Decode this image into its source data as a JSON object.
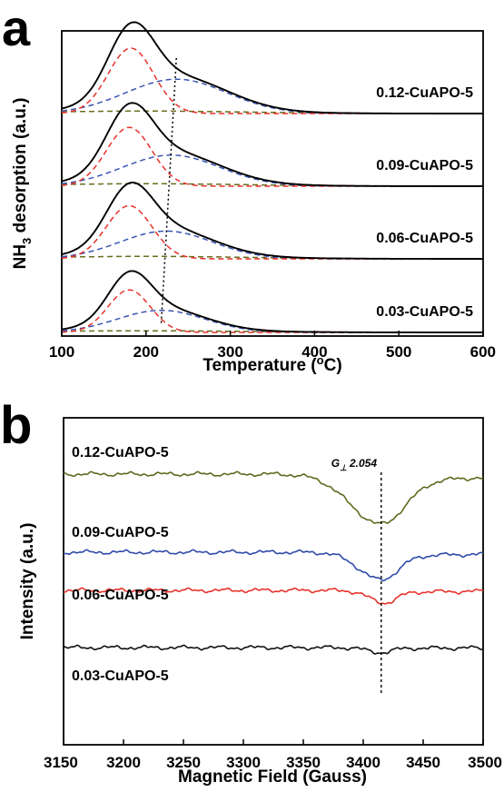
{
  "chart_data": [
    {
      "panel": "a",
      "type": "line",
      "xlabel_main": "Temperature (",
      "xlabel_sup": "o",
      "xlabel_end": "C)",
      "ylabel_main": "NH",
      "ylabel_sub": "3",
      "ylabel_end": " desorption (a.u.)",
      "xlim": [
        100,
        600
      ],
      "xticks": [
        100,
        200,
        300,
        400,
        500,
        600
      ],
      "y_ticks_labeled": false,
      "grid": false,
      "colors": {
        "total": "#000000",
        "peak1": "#e8322b",
        "peak2": "#3a56b4",
        "peak3": "#6b6b1e"
      },
      "series": [
        {
          "name": "0.12-CuAPO-5",
          "baseline": 0,
          "peak1": {
            "center": 182,
            "height": 0.8,
            "width": 27
          },
          "peak2": {
            "center": 236,
            "height": 0.42,
            "width": 60
          },
          "peak3": {
            "center": 200,
            "height": 0.03,
            "width": 120
          }
        },
        {
          "name": "0.09-CuAPO-5",
          "baseline": 0,
          "peak1": {
            "center": 180,
            "height": 0.72,
            "width": 27
          },
          "peak2": {
            "center": 230,
            "height": 0.38,
            "width": 58
          },
          "peak3": {
            "center": 200,
            "height": 0.03,
            "width": 120
          }
        },
        {
          "name": "0.06-CuAPO-5",
          "baseline": 0,
          "peak1": {
            "center": 180,
            "height": 0.65,
            "width": 27
          },
          "peak2": {
            "center": 224,
            "height": 0.34,
            "width": 55
          },
          "peak3": {
            "center": 200,
            "height": 0.03,
            "width": 120
          }
        },
        {
          "name": "0.03-CuAPO-5",
          "baseline": 0,
          "peak1": {
            "center": 180,
            "height": 0.52,
            "width": 25
          },
          "peak2": {
            "center": 218,
            "height": 0.27,
            "width": 52
          },
          "peak3": {
            "center": 200,
            "height": 0.02,
            "width": 120
          }
        }
      ],
      "peak_trend_line": {
        "x_top": 236,
        "x_bottom": 218
      }
    },
    {
      "panel": "b",
      "type": "line",
      "xlabel": "Magnetic Field (Gauss)",
      "ylabel": "Intensity (a.u.)",
      "xlim": [
        3150,
        3500
      ],
      "xticks": [
        3150,
        3200,
        3250,
        3300,
        3350,
        3400,
        3450,
        3500
      ],
      "y_ticks_labeled": false,
      "grid": false,
      "annotation": {
        "text": "G",
        "subscript": "⊥",
        "value": "2.054",
        "x": 3415
      },
      "series": [
        {
          "name": "0.12-CuAPO-5",
          "color": "#5e6a1e",
          "dip_center": 3415,
          "dip_depth": 1.0,
          "dip_width": 28,
          "noise": 0.05
        },
        {
          "name": "0.09-CuAPO-5",
          "color": "#2f4aa8",
          "dip_center": 3415,
          "dip_depth": 0.55,
          "dip_width": 20,
          "noise": 0.05
        },
        {
          "name": "0.06-CuAPO-5",
          "color": "#e8322b",
          "dip_center": 3418,
          "dip_depth": 0.25,
          "dip_width": 14,
          "noise": 0.05
        },
        {
          "name": "0.03-CuAPO-5",
          "color": "#111111",
          "dip_center": 3415,
          "dip_depth": 0.1,
          "dip_width": 12,
          "noise": 0.05
        }
      ]
    }
  ]
}
